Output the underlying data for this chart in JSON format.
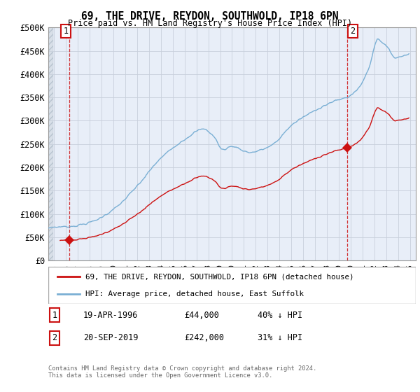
{
  "title": "69, THE DRIVE, REYDON, SOUTHWOLD, IP18 6PN",
  "subtitle": "Price paid vs. HM Land Registry's House Price Index (HPI)",
  "ylim": [
    0,
    500000
  ],
  "yticks": [
    0,
    50000,
    100000,
    150000,
    200000,
    250000,
    300000,
    350000,
    400000,
    450000,
    500000
  ],
  "ytick_labels": [
    "£0",
    "£50K",
    "£100K",
    "£150K",
    "£200K",
    "£250K",
    "£300K",
    "£350K",
    "£400K",
    "£450K",
    "£500K"
  ],
  "xlim_start": 1994.5,
  "xlim_end": 2025.5,
  "hpi_color": "#7aafd4",
  "price_color": "#cc1111",
  "dashed_color": "#cc1111",
  "background_color": "#ffffff",
  "plot_bg_color": "#e8eef8",
  "hatch_bg_color": "#d8dfe8",
  "grid_color": "#c8d0dc",
  "sale1_x": 1996.29,
  "sale1_y": 44000,
  "sale2_x": 2019.72,
  "sale2_y": 242000,
  "legend_label_price": "69, THE DRIVE, REYDON, SOUTHWOLD, IP18 6PN (detached house)",
  "legend_label_hpi": "HPI: Average price, detached house, East Suffolk",
  "footer_line1": "Contains HM Land Registry data © Crown copyright and database right 2024.",
  "footer_line2": "This data is licensed under the Open Government Licence v3.0.",
  "annotation1_label": "1",
  "annotation1_date": "19-APR-1996",
  "annotation1_price": "£44,000",
  "annotation1_hpi": "40% ↓ HPI",
  "annotation2_label": "2",
  "annotation2_date": "20-SEP-2019",
  "annotation2_price": "£242,000",
  "annotation2_hpi": "31% ↓ HPI"
}
